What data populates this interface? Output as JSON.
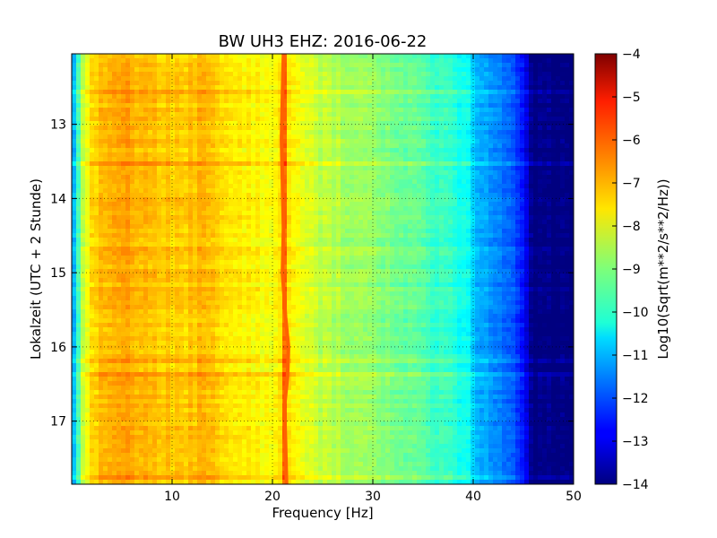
{
  "chart_data": {
    "type": "heatmap",
    "title": "BW UH3 EHZ: 2016-06-22",
    "xlabel": "Frequency [Hz]",
    "ylabel": "Lokalzeit (UTC + 2 Stunde)",
    "xlim": [
      0,
      50
    ],
    "ylim": [
      12.05,
      17.85
    ],
    "y_inverted": true,
    "x_ticks": [
      10,
      20,
      30,
      40,
      50
    ],
    "y_ticks": [
      13,
      14,
      15,
      16,
      17
    ],
    "grid": true,
    "colormap": "jet",
    "colorbar": {
      "label": "Log10(Sqrt(m**2/s**2/Hz))",
      "range": [
        -14,
        -4
      ],
      "ticks": [
        -4,
        -5,
        -6,
        -7,
        -8,
        -9,
        -10,
        -11,
        -12,
        -13,
        -14
      ]
    },
    "spectrum_profile": {
      "frequency_hz": [
        0,
        0.5,
        1,
        2,
        3,
        5,
        8,
        10,
        13,
        15,
        18,
        20,
        20.7,
        21.2,
        21.7,
        23,
        25,
        28,
        30,
        33,
        35,
        38,
        39.5,
        40.5,
        42,
        44,
        45,
        46,
        50
      ],
      "level": [
        -11.5,
        -10,
        -8.5,
        -7.5,
        -7.1,
        -6.9,
        -7.1,
        -7.3,
        -7.1,
        -7.4,
        -7.7,
        -7.9,
        -7.5,
        -6.3,
        -7.5,
        -8.1,
        -8.4,
        -8.7,
        -8.9,
        -9.2,
        -9.5,
        -9.9,
        -10.3,
        -11.0,
        -11.4,
        -12.0,
        -12.8,
        -14,
        -14
      ]
    },
    "line_feature": {
      "frequency_hz": [
        21.1,
        21.0,
        20.9,
        21.0,
        21.1,
        21.0,
        21.3,
        21.6,
        21.5,
        21.2,
        21.3,
        21.4
      ],
      "time_h": [
        12.05,
        12.6,
        13.2,
        13.8,
        14.4,
        15.0,
        15.6,
        16.0,
        16.4,
        16.8,
        17.3,
        17.85
      ],
      "level": -6.2
    }
  }
}
